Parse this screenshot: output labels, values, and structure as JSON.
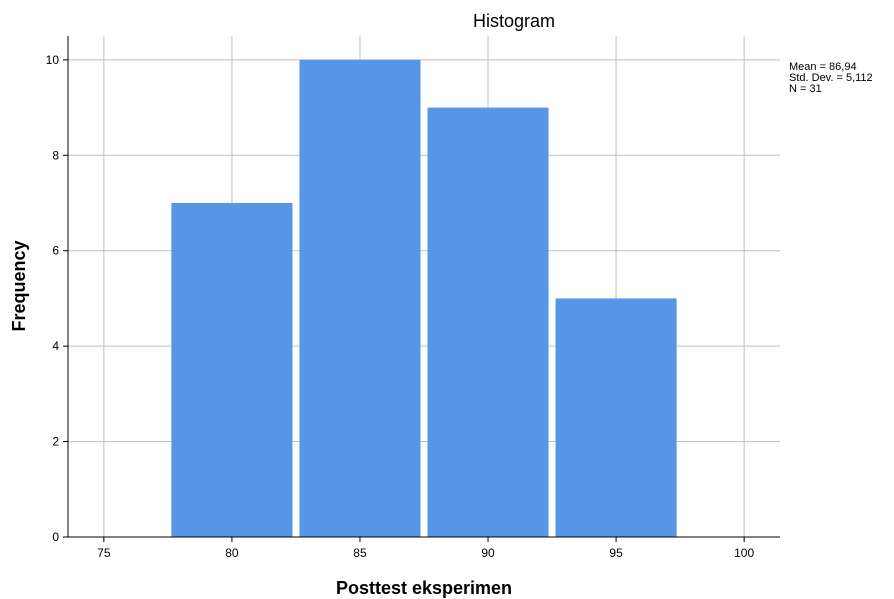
{
  "chart_data": {
    "type": "bar",
    "title": "Histogram",
    "xlabel": "Posttest eksperimen",
    "ylabel": "Frequency",
    "x_ticks": [
      75,
      80,
      85,
      90,
      95,
      100
    ],
    "y_ticks": [
      0,
      2,
      4,
      6,
      8,
      10
    ],
    "xlim": [
      73.6,
      101.4
    ],
    "ylim": [
      0,
      10.5
    ],
    "bin_width": 5,
    "bins": [
      {
        "center": 80,
        "value": 7
      },
      {
        "center": 85,
        "value": 10
      },
      {
        "center": 90,
        "value": 9
      },
      {
        "center": 95,
        "value": 5
      }
    ],
    "grid": true,
    "bar_color": "#5596e6",
    "stats": {
      "mean": "Mean = 86,94",
      "std": "Std. Dev. = 5,112",
      "n": "N = 31"
    }
  }
}
